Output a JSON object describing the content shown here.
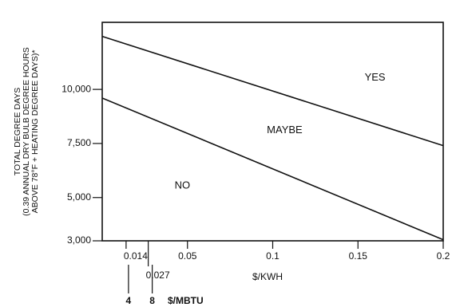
{
  "chart_data": {
    "type": "line",
    "y_label_lines": [
      "TOTAL DEGREE DAYS",
      "(0.39 ANNUAL DRY BULB DEGREE HOURS",
      "ABOVE 78°F + HEATING DEGREE DAYS)*"
    ],
    "x_label": "$/KWH",
    "x": [
      0,
      0.2
    ],
    "series": [
      {
        "color": "#111111",
        "values": [
          12450,
          7400
        ]
      },
      {
        "color": "#111111",
        "values": [
          9600,
          3050
        ]
      }
    ],
    "xlim": [
      0,
      0.2
    ],
    "xticks": [
      0.014,
      0.027,
      0.05,
      0.1,
      0.15,
      0.2
    ],
    "ylim": [
      3000,
      13100
    ],
    "yticks": [
      {
        "value": 3000,
        "label": "3,000"
      },
      {
        "value": 5000,
        "label": "5,000"
      },
      {
        "value": 7500,
        "label": "7,500"
      },
      {
        "value": 10000,
        "label": "10,000"
      }
    ],
    "x2ticks": [
      {
        "value": 0.014,
        "label": "4"
      },
      {
        "value": 0.027,
        "label": "8"
      }
    ],
    "x2_label": "$/MBTU",
    "annotations": [
      {
        "text": "YES",
        "x": 0.16,
        "y": 10540
      },
      {
        "text": "MAYBE",
        "x": 0.107,
        "y": 8110
      },
      {
        "text": "NO",
        "x": 0.047,
        "y": 5540
      }
    ],
    "grid": false
  }
}
